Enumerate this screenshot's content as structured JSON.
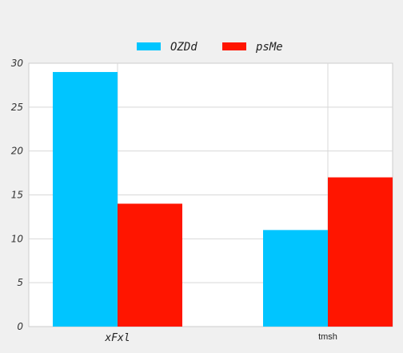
{
  "chart_data": {
    "type": "bar",
    "categories": [
      "xFxl",
      "tmsh"
    ],
    "series": [
      {
        "name": "OZDd",
        "values": [
          29,
          11
        ],
        "color": "#00c5ff"
      },
      {
        "name": "psMe",
        "values": [
          14,
          17
        ],
        "color": "#ff1500"
      }
    ],
    "ylim": [
      0,
      30
    ],
    "yticks": [
      0,
      5,
      10,
      15,
      20,
      25,
      30
    ],
    "grid": true,
    "legend_position": "top-center"
  }
}
